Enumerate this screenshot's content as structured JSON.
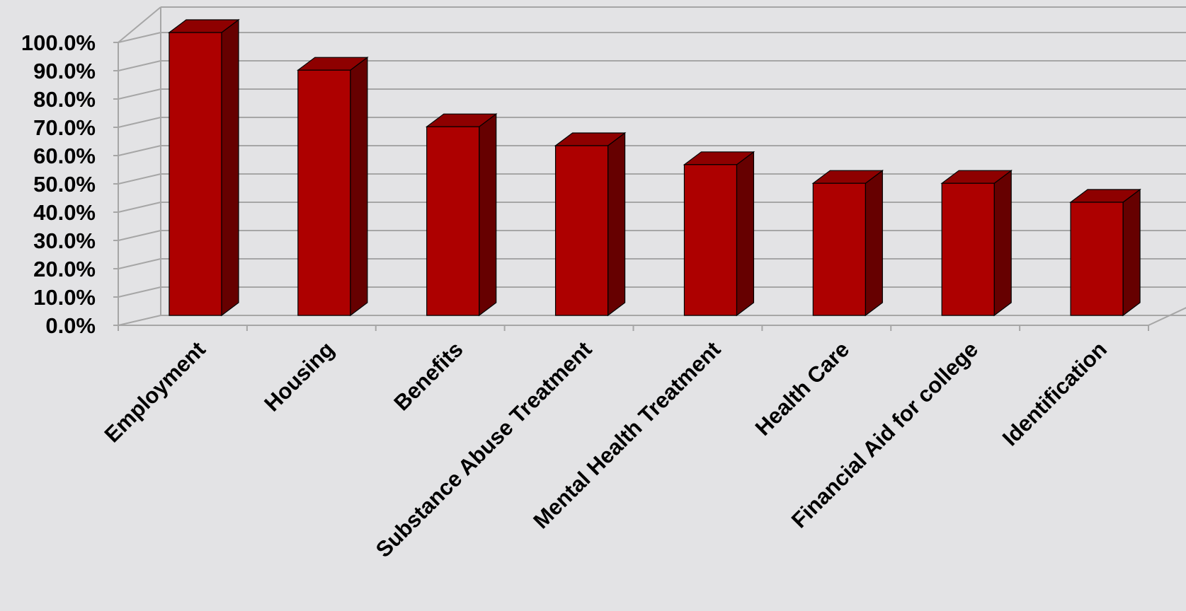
{
  "chart_data": {
    "type": "bar",
    "style": "3d-column",
    "categories": [
      "Employment",
      "Housing",
      "Benefits",
      "Substance Abuse Treatment",
      "Mental Health Treatment",
      "Health Care",
      "Financial Aid for college",
      "Identification"
    ],
    "series": [
      {
        "values": [
          100.0,
          86.7,
          66.7,
          60.0,
          53.3,
          46.7,
          46.7,
          40.0
        ]
      }
    ],
    "title": "",
    "xlabel": "",
    "ylabel": "",
    "ylim": [
      0,
      100
    ],
    "yticks": [
      0,
      10,
      20,
      30,
      40,
      50,
      60,
      70,
      80,
      90,
      100
    ],
    "ytick_labels": [
      "0.0%",
      "10.0%",
      "20.0%",
      "30.0%",
      "40.0%",
      "50.0%",
      "60.0%",
      "70.0%",
      "80.0%",
      "90.0%",
      "100.0%"
    ],
    "grid": true,
    "legend": "none",
    "colors": {
      "background": "#e3e3e5",
      "bar_front": "#ad0000",
      "bar_top": "#8e0000",
      "bar_side": "#660000",
      "gridline": "#a6a6a6",
      "text": "#000000"
    }
  }
}
